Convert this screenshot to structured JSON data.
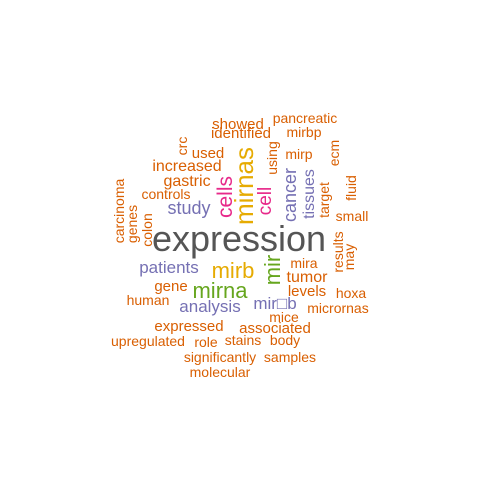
{
  "colors": {
    "orange": "#D95F02",
    "purple": "#7570B3",
    "magenta": "#E7298A",
    "green": "#66A61E",
    "gold": "#E6AB02",
    "gray": "#555555"
  },
  "words": [
    {
      "text": "expression",
      "color": "gray"
    },
    {
      "text": "mirnas",
      "color": "gold"
    },
    {
      "text": "mirb",
      "color": "gold"
    },
    {
      "text": "mirna",
      "color": "green"
    },
    {
      "text": "mir",
      "color": "green"
    },
    {
      "text": "cells",
      "color": "magenta"
    },
    {
      "text": "cell",
      "color": "magenta"
    },
    {
      "text": "cancer",
      "color": "purple"
    },
    {
      "text": "study",
      "color": "purple"
    },
    {
      "text": "patients",
      "color": "purple"
    },
    {
      "text": "analysis",
      "color": "purple"
    },
    {
      "text": "tissues",
      "color": "purple"
    },
    {
      "text": "mir□b",
      "color": "purple"
    },
    {
      "text": "showed",
      "color": "orange"
    },
    {
      "text": "pancreatic",
      "color": "orange"
    },
    {
      "text": "identified",
      "color": "orange"
    },
    {
      "text": "mirbp",
      "color": "orange"
    },
    {
      "text": "crc",
      "color": "orange"
    },
    {
      "text": "used",
      "color": "orange"
    },
    {
      "text": "using",
      "color": "orange"
    },
    {
      "text": "mirp",
      "color": "orange"
    },
    {
      "text": "ecm",
      "color": "orange"
    },
    {
      "text": "increased",
      "color": "orange"
    },
    {
      "text": "gastric",
      "color": "orange"
    },
    {
      "text": "controls",
      "color": "orange"
    },
    {
      "text": "carcinoma",
      "color": "orange"
    },
    {
      "text": "genes",
      "color": "orange"
    },
    {
      "text": "colon",
      "color": "orange"
    },
    {
      "text": "target",
      "color": "orange"
    },
    {
      "text": "fluid",
      "color": "orange"
    },
    {
      "text": "small",
      "color": "orange"
    },
    {
      "text": "results",
      "color": "orange"
    },
    {
      "text": "may",
      "color": "orange"
    },
    {
      "text": "mira",
      "color": "orange"
    },
    {
      "text": "tumor",
      "color": "orange"
    },
    {
      "text": "levels",
      "color": "orange"
    },
    {
      "text": "gene",
      "color": "orange"
    },
    {
      "text": "hoxa",
      "color": "orange"
    },
    {
      "text": "human",
      "color": "orange"
    },
    {
      "text": "micrornas",
      "color": "orange"
    },
    {
      "text": "mice",
      "color": "orange"
    },
    {
      "text": "expressed",
      "color": "orange"
    },
    {
      "text": "associated",
      "color": "orange"
    },
    {
      "text": "upregulated",
      "color": "orange"
    },
    {
      "text": "role",
      "color": "orange"
    },
    {
      "text": "stains",
      "color": "orange"
    },
    {
      "text": "body",
      "color": "orange"
    },
    {
      "text": "significantly",
      "color": "orange"
    },
    {
      "text": "samples",
      "color": "orange"
    },
    {
      "text": "molecular",
      "color": "orange"
    }
  ]
}
